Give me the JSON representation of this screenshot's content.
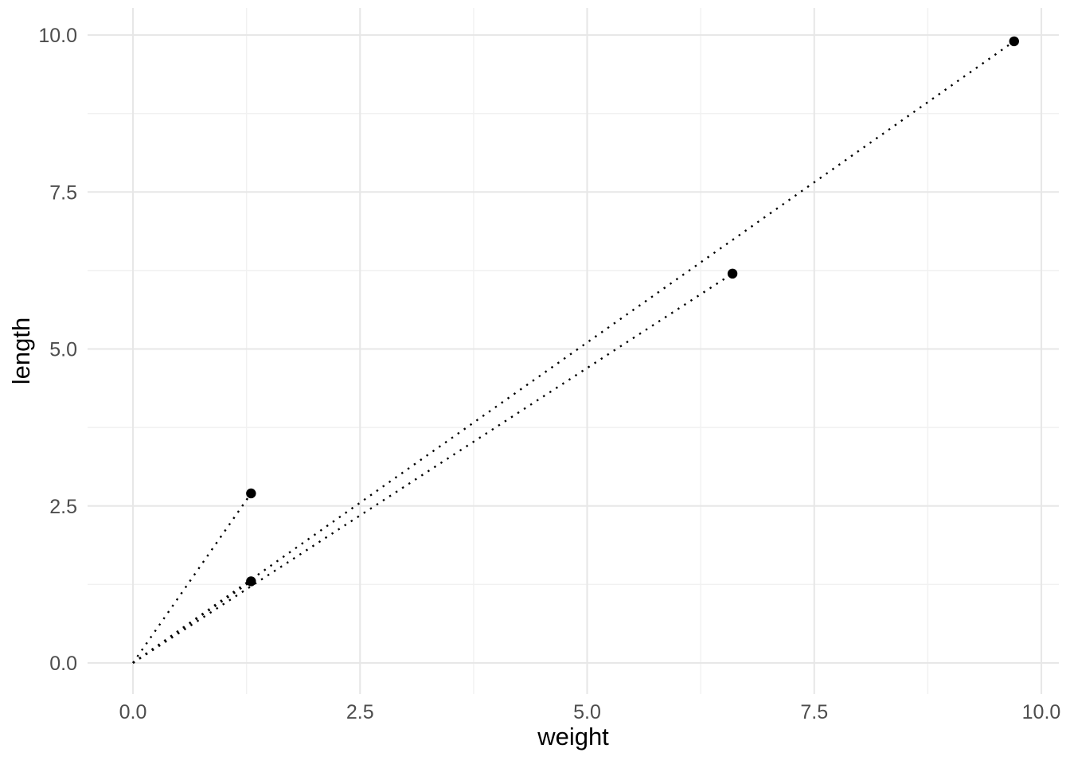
{
  "chart_data": {
    "type": "scatter",
    "title": "",
    "xlabel": "weight",
    "ylabel": "length",
    "x_ticks": [
      0,
      2.5,
      5,
      7.5,
      10
    ],
    "y_ticks": [
      0,
      2.5,
      5,
      7.5,
      10
    ],
    "x_tick_labels": [
      "0.0",
      "2.5",
      "5.0",
      "7.5",
      "10.0"
    ],
    "y_tick_labels": [
      "0.0",
      "2.5",
      "5.0",
      "7.5",
      "10.0"
    ],
    "x_minor_ticks": [
      1.25,
      3.75,
      6.25,
      8.75
    ],
    "y_minor_ticks": [
      1.25,
      3.75,
      6.25,
      8.75
    ],
    "xlim": [
      -0.5,
      10.2
    ],
    "ylim": [
      -0.5,
      10.45
    ],
    "grid": "major-and-minor",
    "legend": "none",
    "points": [
      {
        "weight": 1.3,
        "length": 2.7
      },
      {
        "weight": 1.3,
        "length": 1.3
      },
      {
        "weight": 6.6,
        "length": 6.2
      },
      {
        "weight": 9.7,
        "length": 9.9
      }
    ],
    "segments": [
      {
        "x1": 0,
        "y1": 0,
        "x2": 1.3,
        "y2": 2.7,
        "linetype": "dotted"
      },
      {
        "x1": 0,
        "y1": 0,
        "x2": 1.3,
        "y2": 1.3,
        "linetype": "dotted"
      },
      {
        "x1": 0,
        "y1": 0,
        "x2": 6.6,
        "y2": 6.2,
        "linetype": "dotted"
      },
      {
        "x1": 0,
        "y1": 0,
        "x2": 9.7,
        "y2": 9.9,
        "linetype": "dotted"
      }
    ],
    "styles": {
      "background_color": "#ffffff",
      "point_color": "#000000",
      "segment_color": "#000000",
      "grid_major_color": "#e7e7e7",
      "grid_minor_color": "#f1f1f1",
      "tick_label_color": "#4d4d4d",
      "axis_title_color": "#000000"
    }
  }
}
